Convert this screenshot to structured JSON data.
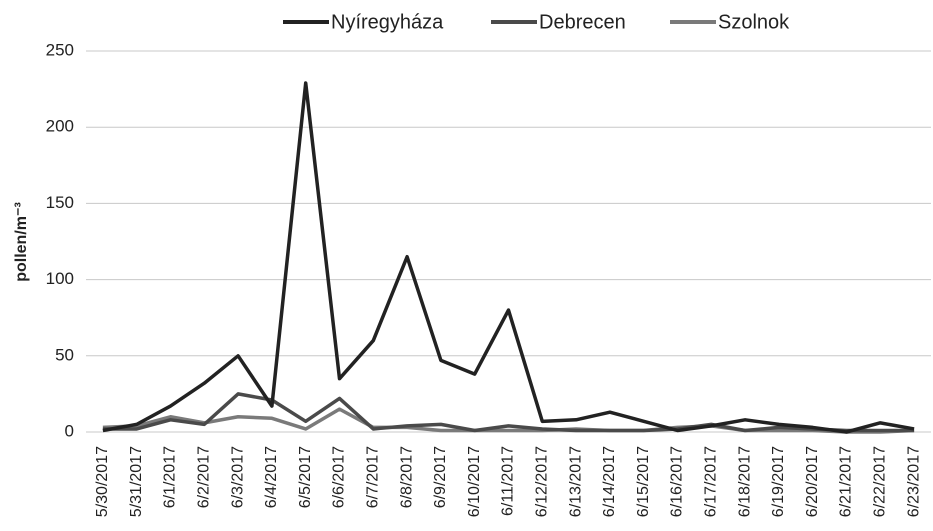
{
  "chart_data": {
    "type": "line",
    "y_label": "pollen/m⁻³",
    "categories": [
      "5/30/2017",
      "5/31/2017",
      "6/1/2017",
      "6/2/2017",
      "6/3/2017",
      "6/4/2017",
      "6/5/2017",
      "6/6/2017",
      "6/7/2017",
      "6/8/2017",
      "6/9/2017",
      "6/10/2017",
      "6/11/2017",
      "6/12/2017",
      "6/13/2017",
      "6/14/2017",
      "6/15/2017",
      "6/16/2017",
      "6/17/2017",
      "6/18/2017",
      "6/19/2017",
      "6/20/2017",
      "6/21/2017",
      "6/22/2017",
      "6/23/2017"
    ],
    "series": [
      {
        "name": "Nyíregyháza",
        "color": "#222222",
        "values": [
          1,
          5,
          17,
          32,
          50,
          17,
          229,
          35,
          60,
          115,
          47,
          38,
          80,
          7,
          8,
          13,
          7,
          1,
          4,
          8,
          5,
          3,
          0,
          6,
          2
        ]
      },
      {
        "name": "Debrecen",
        "color": "#4a4a4a",
        "values": [
          2,
          2,
          8,
          5,
          25,
          21,
          7,
          22,
          2,
          4,
          5,
          1,
          4,
          2,
          1,
          1,
          1,
          2,
          5,
          1,
          3,
          2,
          1,
          1,
          1
        ]
      },
      {
        "name": "Szolnok",
        "color": "#7a7a7a",
        "values": [
          3,
          4,
          10,
          6,
          10,
          9,
          2,
          15,
          3,
          3,
          1,
          1,
          1,
          1,
          2,
          1,
          1,
          3,
          4,
          1,
          1,
          1,
          0,
          0,
          1
        ]
      }
    ],
    "ylim": [
      0,
      250
    ],
    "yticks": [
      0,
      50,
      100,
      150,
      200,
      250
    ],
    "grid": true,
    "legend": "top"
  }
}
